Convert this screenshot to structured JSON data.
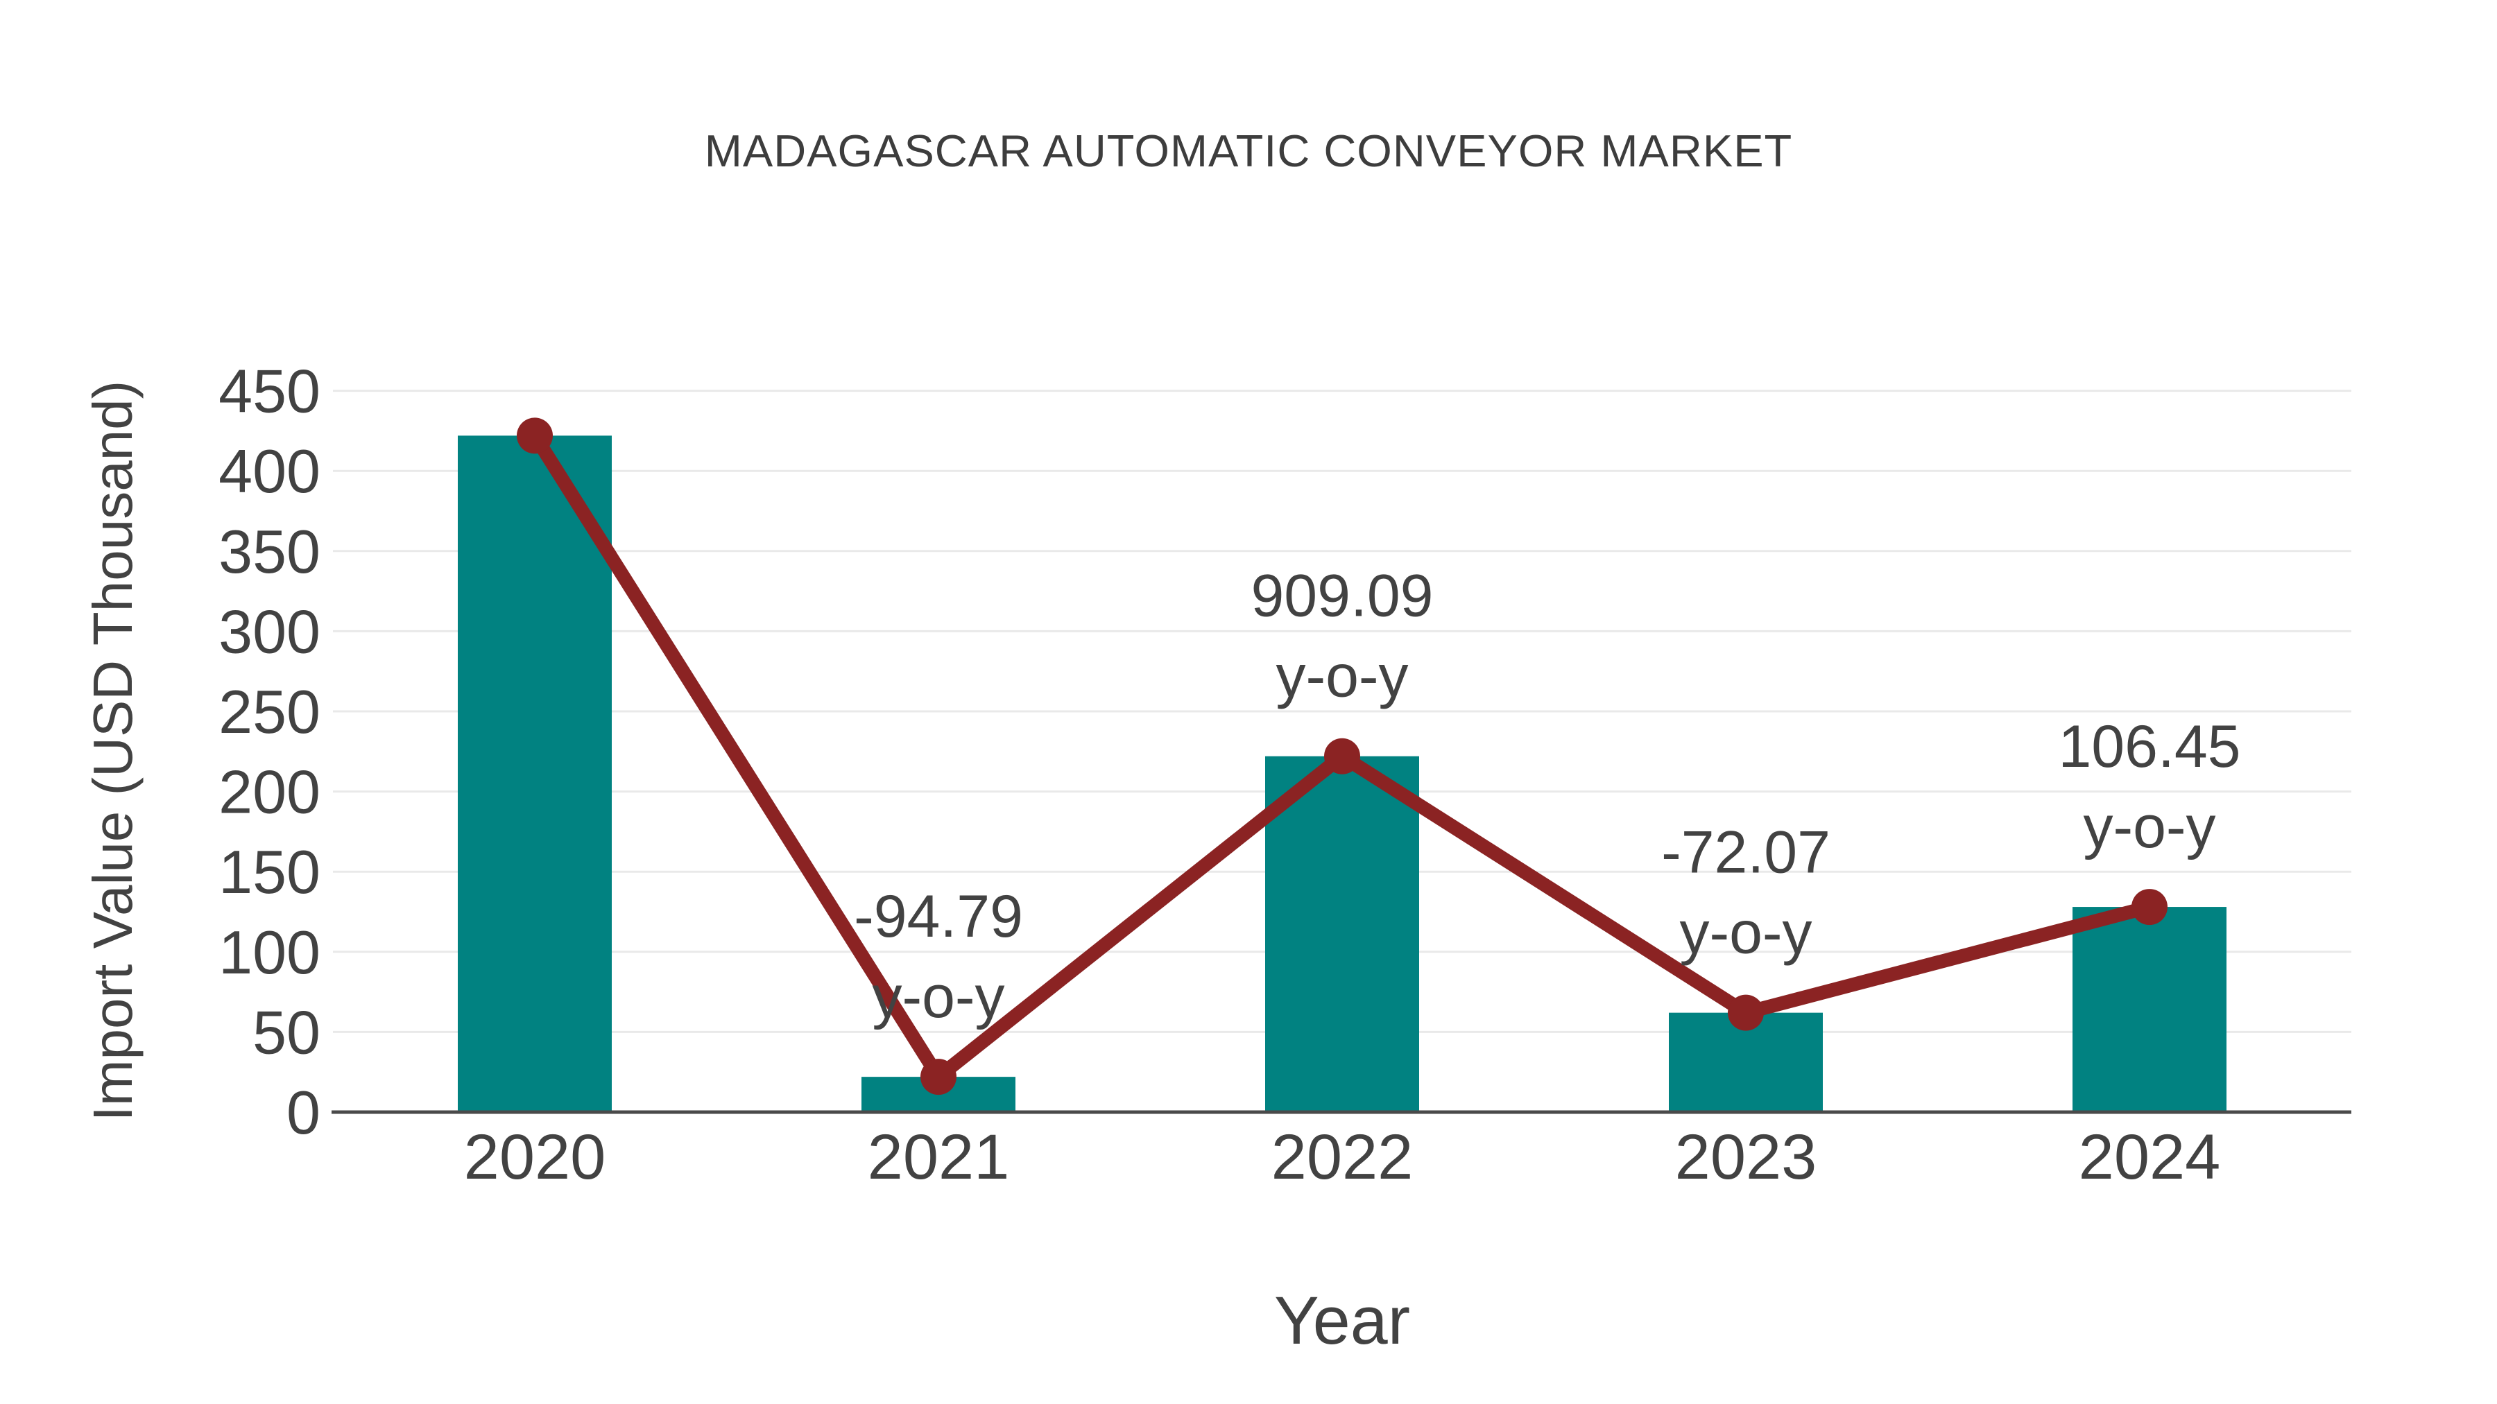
{
  "page": {
    "background": "#ffffff"
  },
  "chart_data": {
    "type": "bar",
    "title": "MADAGASCAR AUTOMATIC CONVEYOR MARKET",
    "xlabel": "Year",
    "ylabel": "Import Value (USD Thousand)",
    "categories": [
      "2020",
      "2021",
      "2022",
      "2023",
      "2024"
    ],
    "series": [
      {
        "name": "import-value-bars",
        "type": "bar",
        "values": [
          422,
          22,
          222,
          62,
          128
        ],
        "color": "#018281"
      },
      {
        "name": "yoy-trend-line",
        "type": "line",
        "values": [
          422,
          22,
          222,
          62,
          128
        ],
        "color": "#8B2323"
      }
    ],
    "annotations": [
      {
        "category": "2021",
        "value": "-94.79",
        "suffix": "y-o-y"
      },
      {
        "category": "2022",
        "value": "909.09",
        "suffix": "y-o-y"
      },
      {
        "category": "2023",
        "value": "-72.07",
        "suffix": "y-o-y"
      },
      {
        "category": "2024",
        "value": "106.45",
        "suffix": "y-o-y"
      }
    ],
    "ylim": [
      0,
      450
    ],
    "ytick_step": 50,
    "yticks": [
      0,
      50,
      100,
      150,
      200,
      250,
      300,
      350,
      400,
      450
    ],
    "grid": true,
    "legend": "none",
    "colors": {
      "bar": "#018281",
      "line": "#8B2323",
      "grid": "#e9e9e9",
      "axis": "#4a4a4a",
      "text": "#424242",
      "title": "#3d3d3d"
    }
  }
}
